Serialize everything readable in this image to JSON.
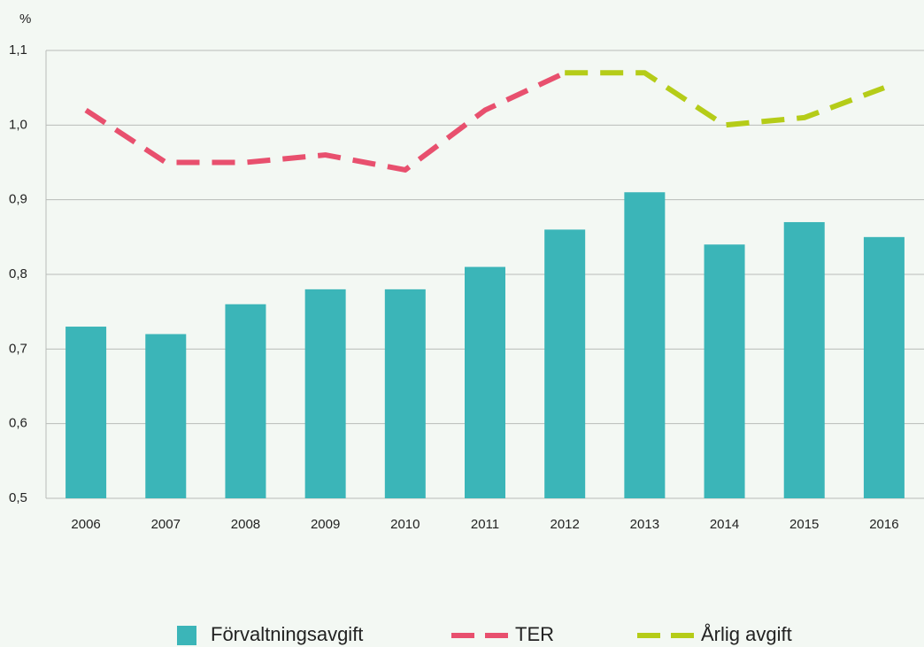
{
  "chart_data": {
    "type": "bar_line",
    "y_unit": "%",
    "categories": [
      "2006",
      "2007",
      "2008",
      "2009",
      "2010",
      "2011",
      "2012",
      "2013",
      "2014",
      "2015",
      "2016"
    ],
    "series": [
      {
        "name": "Förvaltningsavgift",
        "type": "bar",
        "color": "#3bb5b8",
        "values": [
          0.73,
          0.72,
          0.76,
          0.78,
          0.78,
          0.81,
          0.86,
          0.91,
          0.84,
          0.87,
          0.85
        ]
      },
      {
        "name": "TER",
        "type": "line",
        "dashed": true,
        "color": "#e8506e",
        "values": [
          1.02,
          0.95,
          0.95,
          0.96,
          0.94,
          1.02,
          1.07,
          null,
          null,
          null,
          null
        ]
      },
      {
        "name": "Årlig avgift",
        "type": "line",
        "dashed": true,
        "color": "#b5cc18",
        "values": [
          null,
          null,
          null,
          null,
          null,
          null,
          1.07,
          1.07,
          1.0,
          1.01,
          1.05
        ]
      }
    ],
    "ylim": [
      0.5,
      1.1
    ],
    "yticks": [
      {
        "value": 0.5,
        "label": "0,5"
      },
      {
        "value": 0.6,
        "label": "0,6"
      },
      {
        "value": 0.7,
        "label": "0,7"
      },
      {
        "value": 0.8,
        "label": "0,8"
      },
      {
        "value": 0.9,
        "label": "0,9"
      },
      {
        "value": 1.0,
        "label": "1,0"
      },
      {
        "value": 1.1,
        "label": "1,1"
      }
    ],
    "grid": true,
    "legend": "bottom"
  }
}
